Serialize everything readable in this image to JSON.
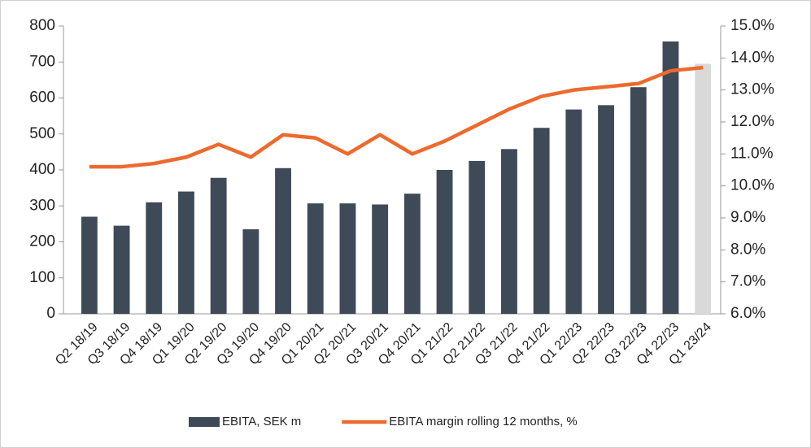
{
  "chart_data": {
    "type": "bar",
    "categories": [
      "Q2 18/19",
      "Q3 18/19",
      "Q4 18/19",
      "Q1 19/20",
      "Q2 19/20",
      "Q3 19/20",
      "Q4 19/20",
      "Q1 20/21",
      "Q2 20/21",
      "Q3 20/21",
      "Q4 20/21",
      "Q1 21/22",
      "Q2 21/22",
      "Q3 21/22",
      "Q4 21/22",
      "Q1 22/23",
      "Q2 22/23",
      "Q3 22/23",
      "Q4 22/23",
      "Q1 23/24"
    ],
    "series": [
      {
        "name": "EBITA, SEK m",
        "type": "bar",
        "color": "#3e4a57",
        "colors": [
          "#3e4a57",
          "#3e4a57",
          "#3e4a57",
          "#3e4a57",
          "#3e4a57",
          "#3e4a57",
          "#3e4a57",
          "#3e4a57",
          "#3e4a57",
          "#3e4a57",
          "#3e4a57",
          "#3e4a57",
          "#3e4a57",
          "#3e4a57",
          "#3e4a57",
          "#3e4a57",
          "#3e4a57",
          "#3e4a57",
          "#3e4a57",
          "#d9d9d9"
        ],
        "values": [
          270,
          245,
          310,
          340,
          378,
          235,
          405,
          307,
          307,
          304,
          334,
          400,
          425,
          458,
          517,
          568,
          580,
          630,
          757,
          695
        ]
      },
      {
        "name": "EBITA margin rolling 12 months, %",
        "type": "line",
        "axis": "y2",
        "color": "#ed6a2e",
        "values": [
          10.6,
          10.6,
          10.7,
          10.9,
          11.3,
          10.9,
          11.6,
          11.5,
          11.0,
          11.6,
          11.0,
          11.4,
          11.9,
          12.4,
          12.8,
          13.0,
          13.1,
          13.2,
          13.6,
          13.7
        ]
      }
    ],
    "ylim": [
      0,
      800
    ],
    "yticks": [
      0,
      100,
      200,
      300,
      400,
      500,
      600,
      700,
      800
    ],
    "y2lim": [
      6,
      15
    ],
    "y2ticks": [
      {
        "value": 6,
        "label": "6.0%"
      },
      {
        "value": 7,
        "label": "7.0%"
      },
      {
        "value": 8,
        "label": "8.0%"
      },
      {
        "value": 9,
        "label": "9.0%"
      },
      {
        "value": 10,
        "label": "10.0%"
      },
      {
        "value": 11,
        "label": "11.0%"
      },
      {
        "value": 12,
        "label": "12.0%"
      },
      {
        "value": 13,
        "label": "13.0%"
      },
      {
        "value": 14,
        "label": "14.0%"
      },
      {
        "value": 15,
        "label": "15.0%"
      }
    ],
    "legend": "bottom"
  }
}
